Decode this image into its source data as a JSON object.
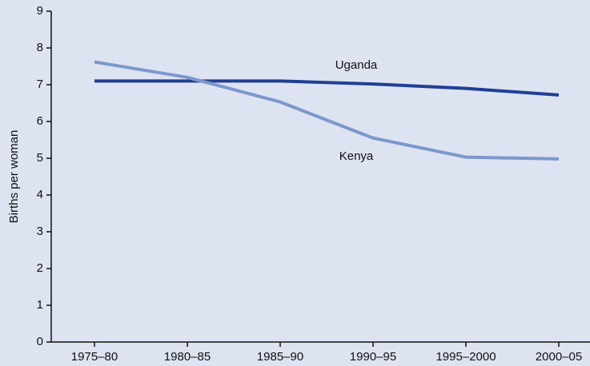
{
  "chart_data": {
    "type": "line",
    "y_label": "Births per woman",
    "categories": [
      "1975–80",
      "1980–85",
      "1985–90",
      "1990–95",
      "1995–2000",
      "2000–05"
    ],
    "series": [
      {
        "name": "Uganda",
        "color": "#1f3f93",
        "values": [
          7.1,
          7.1,
          7.1,
          7.02,
          6.9,
          6.72
        ]
      },
      {
        "name": "Kenya",
        "color": "#7c98cc",
        "values": [
          7.62,
          7.2,
          6.53,
          5.55,
          5.03,
          4.98
        ]
      }
    ],
    "ylim": [
      0,
      9
    ],
    "yticks": [
      0,
      1,
      2,
      3,
      4,
      5,
      6,
      7,
      8,
      9
    ]
  }
}
